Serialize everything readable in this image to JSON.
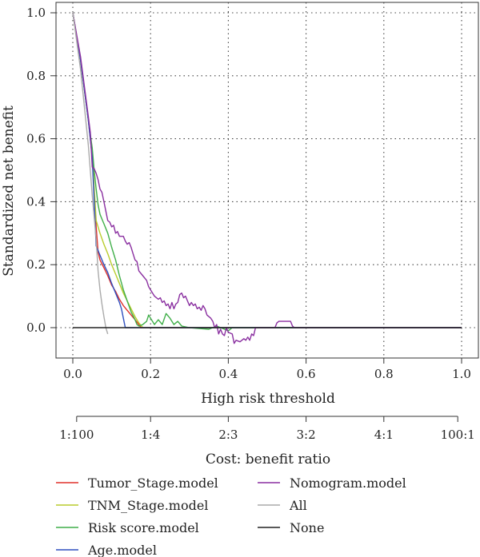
{
  "chart_data": {
    "type": "line",
    "xlabel": "High risk threshold",
    "ylabel": "Standardized net benefit",
    "xlim": [
      0,
      1.0
    ],
    "ylim": [
      -0.06,
      1.0
    ],
    "x_ticks": [
      "0.0",
      "0.2",
      "0.4",
      "0.6",
      "0.8",
      "1.0"
    ],
    "y_ticks": [
      "0.0",
      "0.2",
      "0.4",
      "0.6",
      "0.8",
      "1.0"
    ],
    "grid": true,
    "cost_benefit_axis": {
      "label": "Cost: benefit ratio",
      "ticks": [
        {
          "threshold": 0.0099,
          "label": "1:100"
        },
        {
          "threshold": 0.2,
          "label": "1:4"
        },
        {
          "threshold": 0.4,
          "label": "2:3"
        },
        {
          "threshold": 0.6,
          "label": "3:2"
        },
        {
          "threshold": 0.8,
          "label": "4:1"
        },
        {
          "threshold": 0.9901,
          "label": "100:1"
        }
      ]
    },
    "legend_position": "bottom",
    "series": [
      {
        "name": "Tumor_Stage.model",
        "color": "#e0302a",
        "points": [
          [
            0.0,
            1.0
          ],
          [
            0.02,
            0.85
          ],
          [
            0.04,
            0.66
          ],
          [
            0.05,
            0.54
          ],
          [
            0.06,
            0.32
          ],
          [
            0.065,
            0.24
          ],
          [
            0.07,
            0.215
          ],
          [
            0.08,
            0.19
          ],
          [
            0.09,
            0.165
          ],
          [
            0.1,
            0.135
          ],
          [
            0.11,
            0.115
          ],
          [
            0.12,
            0.09
          ],
          [
            0.13,
            0.07
          ],
          [
            0.14,
            0.055
          ],
          [
            0.15,
            0.04
          ],
          [
            0.16,
            0.025
          ],
          [
            0.17,
            0.01
          ],
          [
            0.175,
            0.0
          ],
          [
            1.0,
            0.0
          ]
        ]
      },
      {
        "name": "TNM_Stage.model",
        "color": "#b9cc2c",
        "points": [
          [
            0.0,
            1.0
          ],
          [
            0.02,
            0.85
          ],
          [
            0.04,
            0.66
          ],
          [
            0.05,
            0.55
          ],
          [
            0.06,
            0.34
          ],
          [
            0.07,
            0.3
          ],
          [
            0.08,
            0.265
          ],
          [
            0.09,
            0.235
          ],
          [
            0.1,
            0.2
          ],
          [
            0.11,
            0.17
          ],
          [
            0.12,
            0.14
          ],
          [
            0.13,
            0.11
          ],
          [
            0.14,
            0.085
          ],
          [
            0.15,
            0.06
          ],
          [
            0.16,
            0.035
          ],
          [
            0.17,
            0.015
          ],
          [
            0.18,
            0.0
          ],
          [
            1.0,
            0.0
          ]
        ]
      },
      {
        "name": "Risk score.model",
        "color": "#3fae48",
        "points": [
          [
            0.0,
            1.0
          ],
          [
            0.02,
            0.85
          ],
          [
            0.04,
            0.66
          ],
          [
            0.05,
            0.57
          ],
          [
            0.055,
            0.5
          ],
          [
            0.06,
            0.44
          ],
          [
            0.065,
            0.39
          ],
          [
            0.07,
            0.36
          ],
          [
            0.08,
            0.33
          ],
          [
            0.09,
            0.3
          ],
          [
            0.1,
            0.255
          ],
          [
            0.11,
            0.215
          ],
          [
            0.12,
            0.165
          ],
          [
            0.13,
            0.12
          ],
          [
            0.14,
            0.085
          ],
          [
            0.15,
            0.05
          ],
          [
            0.16,
            0.025
          ],
          [
            0.165,
            0.01
          ],
          [
            0.17,
            0.005
          ],
          [
            0.18,
            0.01
          ],
          [
            0.19,
            0.02
          ],
          [
            0.195,
            0.04
          ],
          [
            0.2,
            0.03
          ],
          [
            0.21,
            0.01
          ],
          [
            0.22,
            0.025
          ],
          [
            0.23,
            0.01
          ],
          [
            0.24,
            0.045
          ],
          [
            0.25,
            0.03
          ],
          [
            0.26,
            0.01
          ],
          [
            0.27,
            0.02
          ],
          [
            0.28,
            0.005
          ],
          [
            0.3,
            0.0
          ],
          [
            0.35,
            -0.005
          ],
          [
            0.37,
            0.005
          ],
          [
            0.4,
            -0.01
          ],
          [
            0.41,
            0.0
          ],
          [
            1.0,
            0.0
          ]
        ]
      },
      {
        "name": "Age.model",
        "color": "#2f4fbf",
        "points": [
          [
            0.0,
            1.0
          ],
          [
            0.02,
            0.85
          ],
          [
            0.04,
            0.66
          ],
          [
            0.05,
            0.54
          ],
          [
            0.06,
            0.26
          ],
          [
            0.07,
            0.23
          ],
          [
            0.08,
            0.2
          ],
          [
            0.09,
            0.175
          ],
          [
            0.1,
            0.14
          ],
          [
            0.11,
            0.11
          ],
          [
            0.12,
            0.08
          ],
          [
            0.125,
            0.06
          ],
          [
            0.13,
            0.03
          ],
          [
            0.135,
            0.0
          ],
          [
            1.0,
            0.0
          ]
        ]
      },
      {
        "name": "Nomogram.model",
        "color": "#8a2fa0",
        "points": [
          [
            0.0,
            1.0
          ],
          [
            0.02,
            0.86
          ],
          [
            0.04,
            0.67
          ],
          [
            0.045,
            0.62
          ],
          [
            0.05,
            0.51
          ],
          [
            0.055,
            0.505
          ],
          [
            0.06,
            0.49
          ],
          [
            0.065,
            0.47
          ],
          [
            0.07,
            0.44
          ],
          [
            0.075,
            0.43
          ],
          [
            0.08,
            0.4
          ],
          [
            0.085,
            0.37
          ],
          [
            0.09,
            0.34
          ],
          [
            0.095,
            0.335
          ],
          [
            0.1,
            0.32
          ],
          [
            0.105,
            0.325
          ],
          [
            0.11,
            0.3
          ],
          [
            0.115,
            0.305
          ],
          [
            0.12,
            0.29
          ],
          [
            0.13,
            0.29
          ],
          [
            0.135,
            0.275
          ],
          [
            0.14,
            0.265
          ],
          [
            0.145,
            0.27
          ],
          [
            0.15,
            0.255
          ],
          [
            0.155,
            0.235
          ],
          [
            0.16,
            0.215
          ],
          [
            0.165,
            0.21
          ],
          [
            0.17,
            0.18
          ],
          [
            0.18,
            0.165
          ],
          [
            0.19,
            0.15
          ],
          [
            0.195,
            0.13
          ],
          [
            0.2,
            0.12
          ],
          [
            0.21,
            0.1
          ],
          [
            0.22,
            0.09
          ],
          [
            0.225,
            0.095
          ],
          [
            0.23,
            0.08
          ],
          [
            0.235,
            0.085
          ],
          [
            0.24,
            0.07
          ],
          [
            0.245,
            0.075
          ],
          [
            0.25,
            0.06
          ],
          [
            0.255,
            0.08
          ],
          [
            0.26,
            0.06
          ],
          [
            0.265,
            0.075
          ],
          [
            0.27,
            0.08
          ],
          [
            0.275,
            0.105
          ],
          [
            0.28,
            0.11
          ],
          [
            0.285,
            0.095
          ],
          [
            0.29,
            0.1
          ],
          [
            0.3,
            0.07
          ],
          [
            0.305,
            0.08
          ],
          [
            0.31,
            0.07
          ],
          [
            0.315,
            0.075
          ],
          [
            0.32,
            0.06
          ],
          [
            0.325,
            0.065
          ],
          [
            0.33,
            0.055
          ],
          [
            0.335,
            0.07
          ],
          [
            0.34,
            0.06
          ],
          [
            0.345,
            0.04
          ],
          [
            0.35,
            0.035
          ],
          [
            0.355,
            0.03
          ],
          [
            0.36,
            0.02
          ],
          [
            0.365,
            0.0
          ],
          [
            0.37,
            0.01
          ],
          [
            0.375,
            -0.02
          ],
          [
            0.38,
            -0.005
          ],
          [
            0.385,
            -0.02
          ],
          [
            0.39,
            -0.025
          ],
          [
            0.395,
            0.0
          ],
          [
            0.4,
            -0.015
          ],
          [
            0.41,
            -0.02
          ],
          [
            0.415,
            -0.05
          ],
          [
            0.42,
            -0.04
          ],
          [
            0.43,
            -0.045
          ],
          [
            0.44,
            -0.035
          ],
          [
            0.445,
            -0.04
          ],
          [
            0.45,
            -0.03
          ],
          [
            0.455,
            -0.04
          ],
          [
            0.46,
            -0.02
          ],
          [
            0.465,
            -0.025
          ],
          [
            0.47,
            0.0
          ],
          [
            0.48,
            0.0
          ],
          [
            0.5,
            0.0
          ],
          [
            0.52,
            0.0
          ],
          [
            0.525,
            0.015
          ],
          [
            0.53,
            0.02
          ],
          [
            0.56,
            0.02
          ],
          [
            0.565,
            0.005
          ],
          [
            0.57,
            0.0
          ],
          [
            1.0,
            0.0
          ]
        ]
      },
      {
        "name": "All",
        "color": "#aaaaaa",
        "points": [
          [
            0.0,
            1.0
          ],
          [
            0.02,
            0.82
          ],
          [
            0.04,
            0.58
          ],
          [
            0.05,
            0.42
          ],
          [
            0.06,
            0.28
          ],
          [
            0.065,
            0.18
          ],
          [
            0.07,
            0.12
          ],
          [
            0.075,
            0.075
          ],
          [
            0.08,
            0.035
          ],
          [
            0.085,
            0.0
          ],
          [
            0.09,
            -0.02
          ]
        ]
      },
      {
        "name": "None",
        "color": "#222222",
        "points": [
          [
            0.0,
            0.0
          ],
          [
            1.0,
            0.0
          ]
        ]
      }
    ]
  }
}
